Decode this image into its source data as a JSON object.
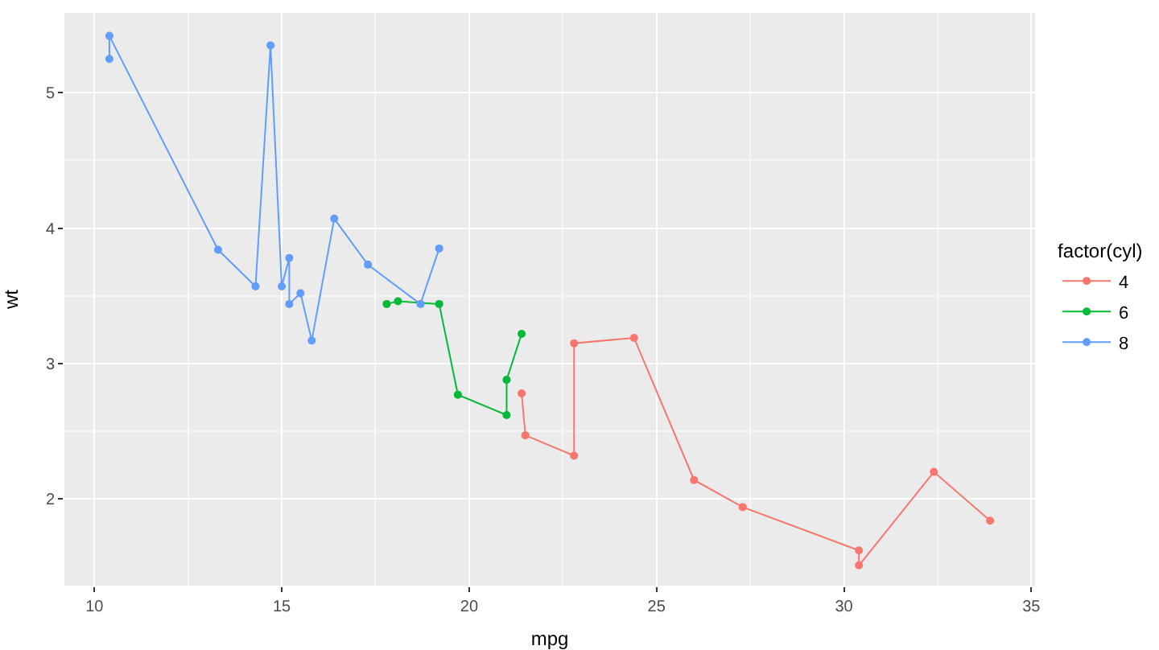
{
  "chart_data": {
    "type": "line",
    "xlabel": "mpg",
    "ylabel": "wt",
    "legend_title": "factor(cyl)",
    "legend": "right",
    "grid": true,
    "marker": "circle",
    "line_style": "solid",
    "xlim": [
      9.2,
      35.1
    ],
    "xticks": [
      10,
      15,
      20,
      25,
      30,
      35
    ],
    "ylim": [
      1.36,
      5.59
    ],
    "yticks": [
      2,
      3,
      4,
      5
    ],
    "series": [
      {
        "name": "4",
        "color": "#f8766d",
        "x": [
          21.4,
          21.5,
          22.8,
          22.8,
          24.4,
          26.0,
          27.3,
          30.4,
          30.4,
          32.4,
          33.9
        ],
        "values": [
          2.78,
          2.47,
          2.32,
          3.15,
          3.19,
          2.14,
          1.94,
          1.62,
          1.51,
          2.2,
          1.84
        ]
      },
      {
        "name": "6",
        "color": "#00ba38",
        "x": [
          17.8,
          18.1,
          19.2,
          19.7,
          21.0,
          21.0,
          21.4
        ],
        "values": [
          3.44,
          3.46,
          3.44,
          2.77,
          2.62,
          2.88,
          3.22
        ]
      },
      {
        "name": "8",
        "color": "#619cff",
        "x": [
          10.4,
          10.4,
          13.3,
          14.3,
          14.7,
          15.0,
          15.2,
          15.2,
          15.5,
          15.8,
          16.4,
          17.3,
          18.7,
          19.2
        ],
        "values": [
          5.25,
          5.42,
          3.84,
          3.57,
          5.35,
          3.57,
          3.78,
          3.44,
          3.52,
          3.17,
          4.07,
          3.73,
          3.44,
          3.85
        ]
      }
    ]
  }
}
